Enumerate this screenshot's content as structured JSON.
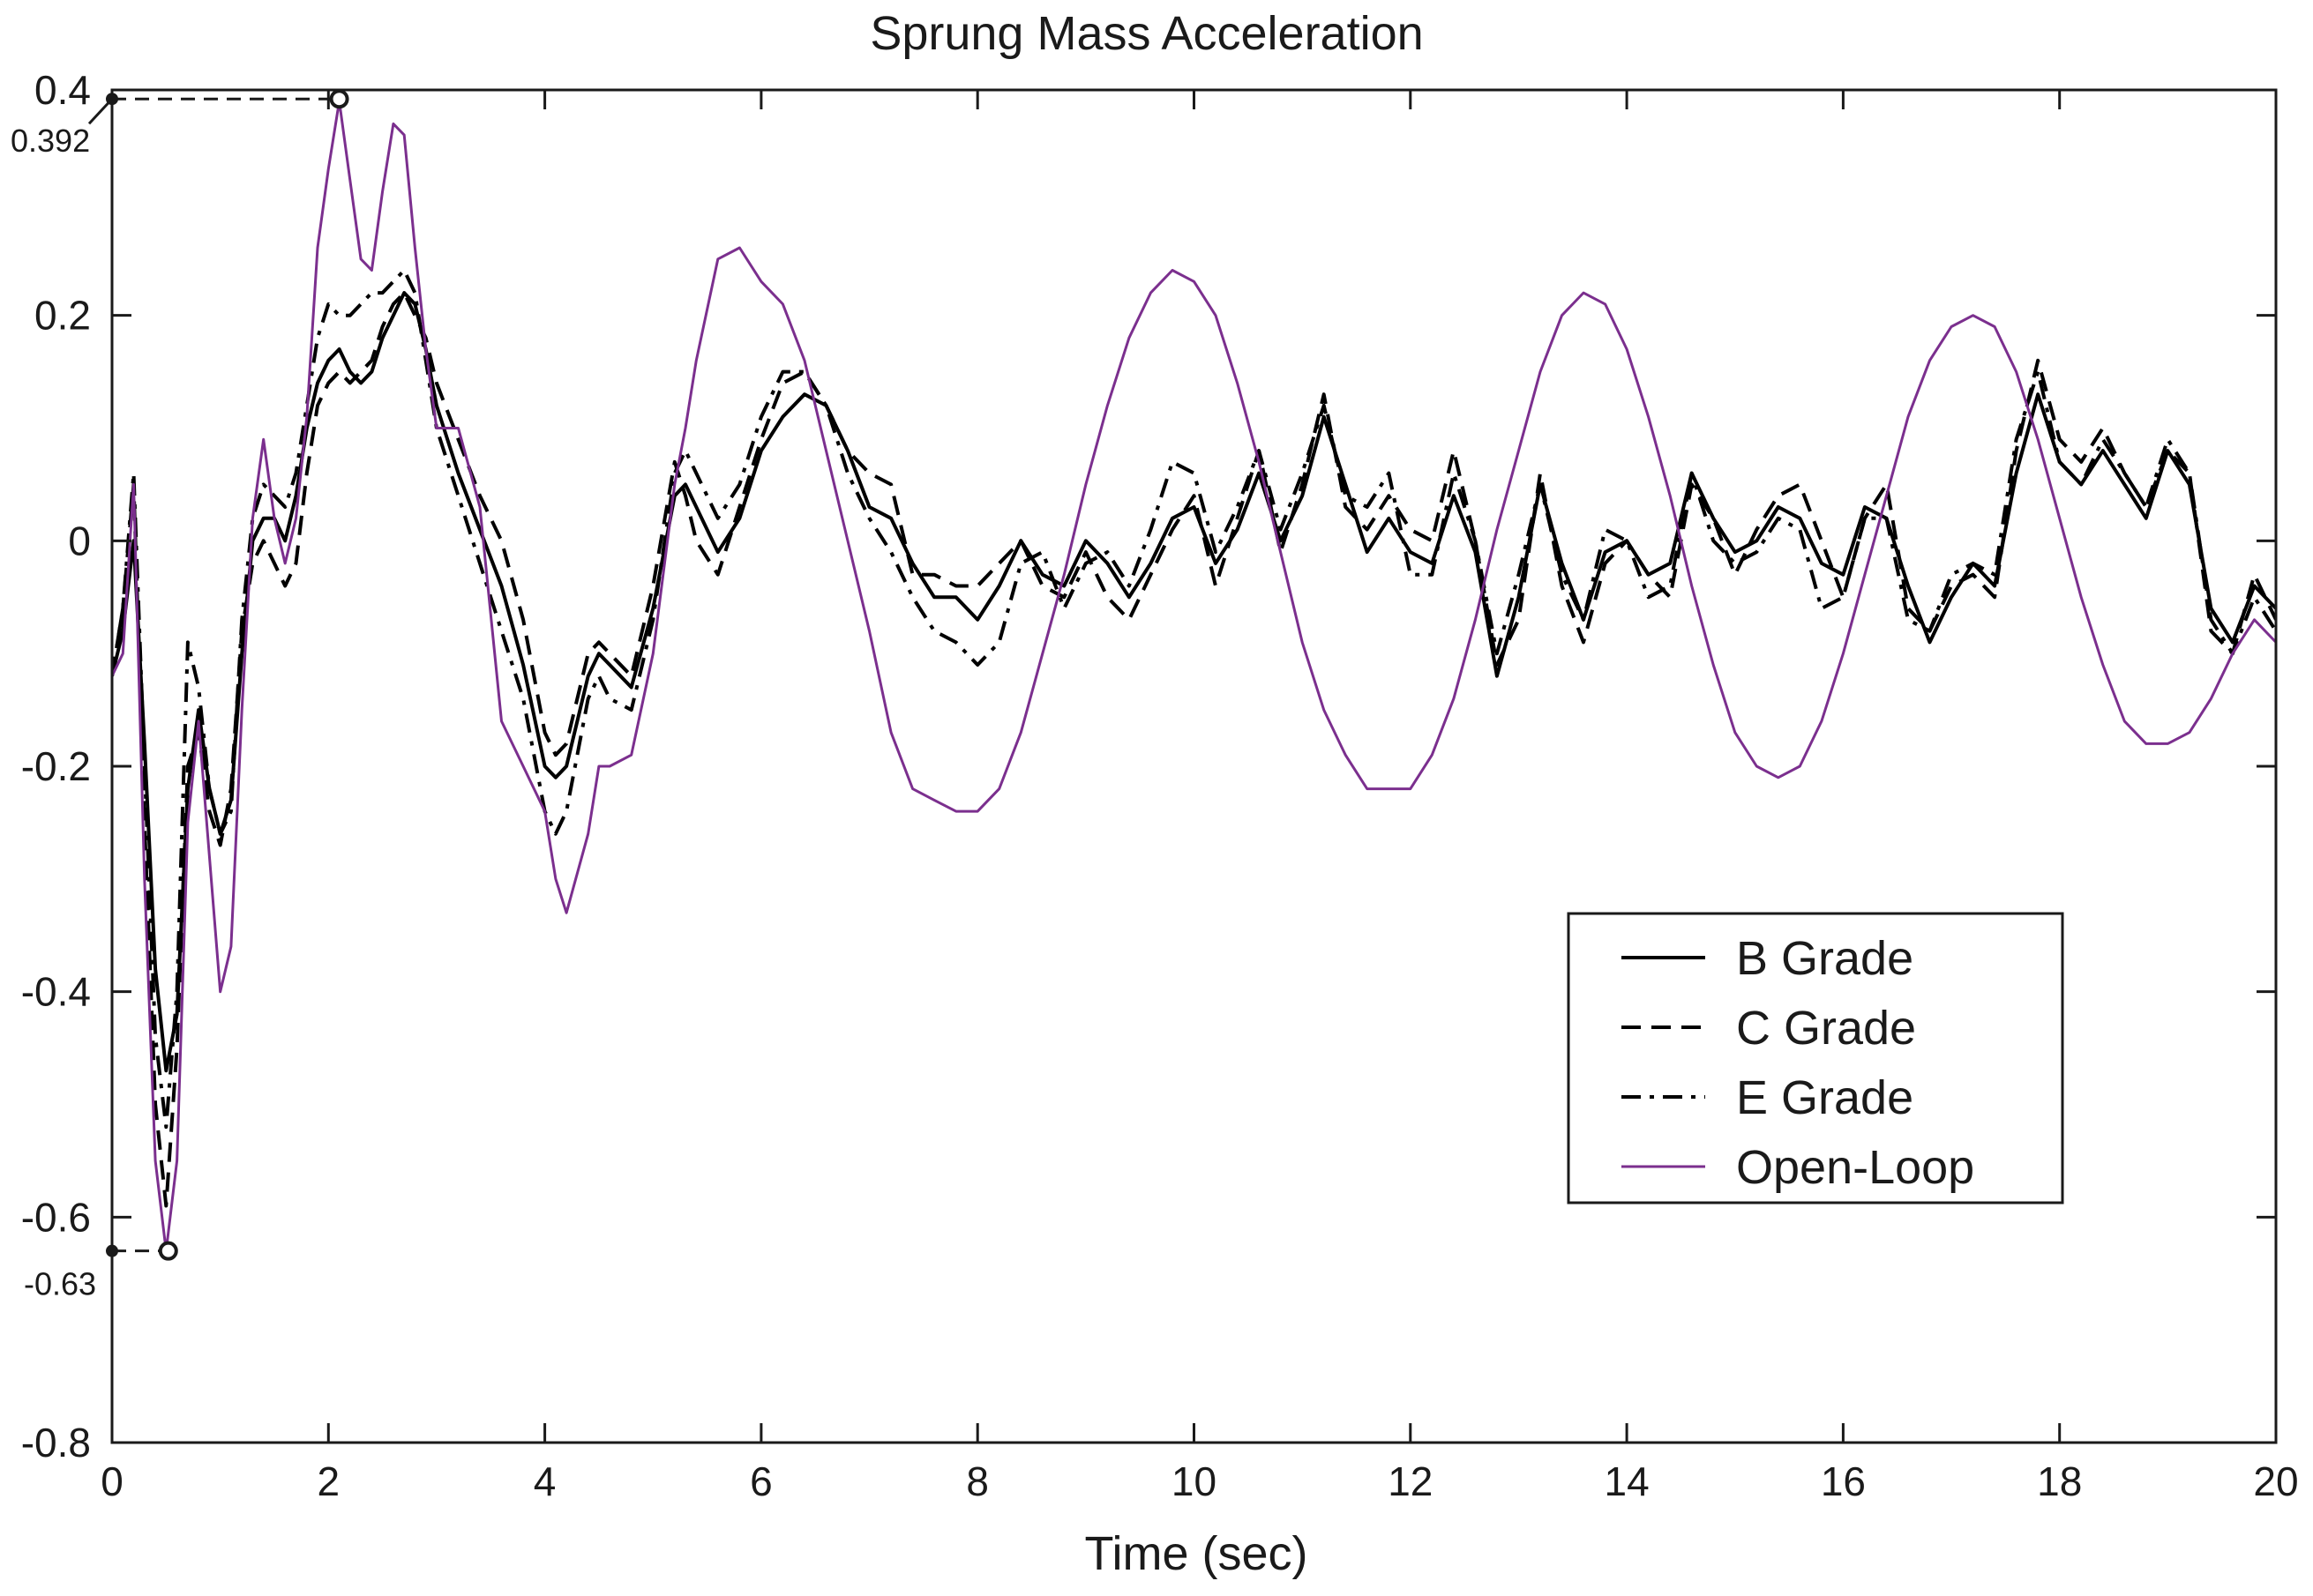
{
  "chart_data": {
    "type": "line",
    "title": "Sprung Mass Acceleration",
    "xlabel": "Time (sec)",
    "ylabel": "",
    "xlim": [
      0,
      20
    ],
    "ylim": [
      -0.8,
      0.4
    ],
    "xticks": [
      0,
      2,
      4,
      6,
      8,
      10,
      12,
      14,
      16,
      18,
      20
    ],
    "xtick_labels": [
      "0",
      "2",
      "4",
      "6",
      "8",
      "10",
      "12",
      "14",
      "16",
      "18",
      "20"
    ],
    "yticks": [
      -0.8,
      -0.6,
      -0.4,
      -0.2,
      0,
      0.2,
      0.4
    ],
    "ytick_labels": [
      "-0.8",
      "-0.6",
      "-0.4",
      "-0.2",
      "0",
      "0.2",
      "0.4"
    ],
    "grid": false,
    "legend_position": "center-right",
    "series": [
      {
        "name": "B Grade",
        "style": "solid",
        "color": "#000000",
        "x": [
          0,
          0.1,
          0.2,
          0.3,
          0.4,
          0.5,
          0.6,
          0.7,
          0.8,
          0.9,
          1.0,
          1.1,
          1.2,
          1.3,
          1.4,
          1.5,
          1.6,
          1.7,
          1.8,
          1.9,
          2.0,
          2.1,
          2.2,
          2.3,
          2.4,
          2.5,
          2.6,
          2.7,
          2.8,
          2.9,
          3.0,
          3.2,
          3.4,
          3.6,
          3.8,
          4.0,
          4.1,
          4.2,
          4.4,
          4.5,
          4.6,
          4.8,
          5.0,
          5.2,
          5.3,
          5.4,
          5.6,
          5.8,
          6.0,
          6.2,
          6.4,
          6.6,
          6.8,
          7.0,
          7.2,
          7.4,
          7.6,
          7.8,
          8.0,
          8.2,
          8.4,
          8.6,
          8.8,
          9.0,
          9.2,
          9.4,
          9.6,
          9.8,
          10.0,
          10.2,
          10.4,
          10.6,
          10.8,
          11.0,
          11.2,
          11.4,
          11.6,
          11.8,
          12.0,
          12.2,
          12.4,
          12.6,
          12.8,
          13.0,
          13.2,
          13.4,
          13.6,
          13.8,
          14.0,
          14.2,
          14.4,
          14.6,
          14.8,
          15.0,
          15.2,
          15.4,
          15.6,
          15.8,
          16.0,
          16.2,
          16.4,
          16.6,
          16.8,
          17.0,
          17.2,
          17.4,
          17.6,
          17.8,
          18.0,
          18.2,
          18.4,
          18.6,
          18.8,
          19.0,
          19.2,
          19.4,
          19.6,
          19.8,
          20.0
        ],
        "y": [
          -0.12,
          -0.08,
          0.0,
          -0.18,
          -0.38,
          -0.47,
          -0.42,
          -0.22,
          -0.15,
          -0.22,
          -0.26,
          -0.23,
          -0.1,
          0.0,
          0.02,
          0.02,
          0.0,
          0.04,
          0.1,
          0.14,
          0.16,
          0.17,
          0.15,
          0.14,
          0.15,
          0.18,
          0.2,
          0.22,
          0.21,
          0.17,
          0.12,
          0.06,
          0.01,
          -0.04,
          -0.11,
          -0.2,
          -0.21,
          -0.2,
          -0.12,
          -0.1,
          -0.11,
          -0.13,
          -0.06,
          0.04,
          0.05,
          0.03,
          -0.01,
          0.02,
          0.08,
          0.11,
          0.13,
          0.12,
          0.08,
          0.03,
          0.02,
          -0.02,
          -0.05,
          -0.05,
          -0.07,
          -0.04,
          0.0,
          -0.03,
          -0.04,
          0.0,
          -0.02,
          -0.05,
          -0.02,
          0.02,
          0.03,
          -0.02,
          0.01,
          0.06,
          0.0,
          0.04,
          0.11,
          0.05,
          -0.01,
          0.02,
          -0.01,
          -0.02,
          0.04,
          -0.01,
          -0.12,
          -0.05,
          0.05,
          -0.02,
          -0.07,
          -0.01,
          0.0,
          -0.03,
          -0.02,
          0.06,
          0.02,
          -0.01,
          0.0,
          0.03,
          0.02,
          -0.02,
          -0.03,
          0.03,
          0.02,
          -0.04,
          -0.09,
          -0.05,
          -0.02,
          -0.04,
          0.06,
          0.13,
          0.07,
          0.05,
          0.08,
          0.05,
          0.02,
          0.08,
          0.05,
          -0.06,
          -0.09,
          -0.04,
          -0.06
        ]
      },
      {
        "name": "C Grade",
        "style": "dashed",
        "color": "#000000",
        "x": [
          0,
          0.1,
          0.2,
          0.3,
          0.4,
          0.5,
          0.6,
          0.7,
          0.8,
          0.9,
          1.0,
          1.1,
          1.2,
          1.3,
          1.4,
          1.5,
          1.6,
          1.7,
          1.8,
          1.9,
          2.0,
          2.1,
          2.2,
          2.3,
          2.4,
          2.5,
          2.6,
          2.7,
          2.8,
          2.9,
          3.0,
          3.2,
          3.4,
          3.6,
          3.8,
          4.0,
          4.1,
          4.2,
          4.4,
          4.5,
          4.6,
          4.8,
          5.0,
          5.2,
          5.3,
          5.4,
          5.6,
          5.8,
          6.0,
          6.2,
          6.4,
          6.6,
          6.8,
          7.0,
          7.2,
          7.4,
          7.6,
          7.8,
          8.0,
          8.2,
          8.4,
          8.6,
          8.8,
          9.0,
          9.2,
          9.4,
          9.6,
          9.8,
          10.0,
          10.2,
          10.4,
          10.6,
          10.8,
          11.0,
          11.2,
          11.4,
          11.6,
          11.8,
          12.0,
          12.2,
          12.4,
          12.6,
          12.8,
          13.0,
          13.2,
          13.4,
          13.6,
          13.8,
          14.0,
          14.2,
          14.4,
          14.6,
          14.8,
          15.0,
          15.2,
          15.4,
          15.6,
          15.8,
          16.0,
          16.2,
          16.4,
          16.6,
          16.8,
          17.0,
          17.2,
          17.4,
          17.6,
          17.8,
          18.0,
          18.2,
          18.4,
          18.6,
          18.8,
          19.0,
          19.2,
          19.4,
          19.6,
          19.8,
          20.0
        ],
        "y": [
          -0.12,
          -0.06,
          0.05,
          -0.25,
          -0.5,
          -0.59,
          -0.45,
          -0.2,
          -0.17,
          -0.24,
          -0.27,
          -0.22,
          -0.08,
          -0.02,
          0.0,
          -0.02,
          -0.04,
          -0.02,
          0.06,
          0.12,
          0.14,
          0.15,
          0.14,
          0.15,
          0.16,
          0.19,
          0.21,
          0.22,
          0.2,
          0.18,
          0.14,
          0.09,
          0.04,
          0.0,
          -0.07,
          -0.17,
          -0.19,
          -0.18,
          -0.1,
          -0.09,
          -0.1,
          -0.12,
          -0.04,
          0.07,
          0.04,
          0.0,
          -0.03,
          0.03,
          0.09,
          0.14,
          0.15,
          0.12,
          0.08,
          0.06,
          0.05,
          -0.03,
          -0.03,
          -0.04,
          -0.04,
          -0.02,
          0.0,
          -0.04,
          -0.05,
          -0.01,
          -0.05,
          -0.07,
          -0.03,
          0.01,
          0.04,
          -0.04,
          0.02,
          0.08,
          -0.01,
          0.05,
          0.13,
          0.03,
          0.01,
          0.04,
          0.01,
          0.0,
          0.08,
          0.0,
          -0.11,
          -0.07,
          0.06,
          -0.04,
          -0.09,
          -0.02,
          0.0,
          -0.03,
          -0.05,
          0.05,
          0.02,
          -0.03,
          0.01,
          0.04,
          0.05,
          0.0,
          -0.05,
          0.02,
          0.05,
          -0.06,
          -0.08,
          -0.04,
          -0.03,
          -0.05,
          0.08,
          0.16,
          0.09,
          0.07,
          0.1,
          0.06,
          0.03,
          0.08,
          0.06,
          -0.08,
          -0.1,
          -0.03,
          -0.07
        ]
      },
      {
        "name": "E Grade",
        "style": "dashdot",
        "color": "#000000",
        "x": [
          0,
          0.1,
          0.2,
          0.3,
          0.4,
          0.5,
          0.6,
          0.7,
          0.8,
          0.9,
          1.0,
          1.1,
          1.2,
          1.3,
          1.4,
          1.5,
          1.6,
          1.7,
          1.8,
          1.9,
          2.0,
          2.1,
          2.2,
          2.3,
          2.4,
          2.5,
          2.6,
          2.7,
          2.8,
          2.9,
          3.0,
          3.2,
          3.4,
          3.6,
          3.8,
          4.0,
          4.1,
          4.2,
          4.4,
          4.5,
          4.6,
          4.8,
          5.0,
          5.2,
          5.3,
          5.4,
          5.6,
          5.8,
          6.0,
          6.2,
          6.4,
          6.6,
          6.8,
          7.0,
          7.2,
          7.4,
          7.6,
          7.8,
          8.0,
          8.2,
          8.4,
          8.6,
          8.8,
          9.0,
          9.2,
          9.4,
          9.6,
          9.8,
          10.0,
          10.2,
          10.4,
          10.6,
          10.8,
          11.0,
          11.2,
          11.4,
          11.6,
          11.8,
          12.0,
          12.2,
          12.4,
          12.6,
          12.8,
          13.0,
          13.2,
          13.4,
          13.6,
          13.8,
          14.0,
          14.2,
          14.4,
          14.6,
          14.8,
          15.0,
          15.2,
          15.4,
          15.6,
          15.8,
          16.0,
          16.2,
          16.4,
          16.6,
          16.8,
          17.0,
          17.2,
          17.4,
          17.6,
          17.8,
          18.0,
          18.2,
          18.4,
          18.6,
          18.8,
          19.0,
          19.2,
          19.4,
          19.6,
          19.8,
          20.0
        ],
        "y": [
          -0.12,
          -0.06,
          0.06,
          -0.2,
          -0.44,
          -0.52,
          -0.4,
          -0.09,
          -0.13,
          -0.22,
          -0.26,
          -0.24,
          -0.07,
          0.02,
          0.05,
          0.04,
          0.03,
          0.06,
          0.12,
          0.18,
          0.21,
          0.2,
          0.2,
          0.21,
          0.22,
          0.22,
          0.23,
          0.24,
          0.22,
          0.16,
          0.1,
          0.04,
          -0.02,
          -0.08,
          -0.14,
          -0.24,
          -0.26,
          -0.24,
          -0.14,
          -0.12,
          -0.14,
          -0.15,
          -0.07,
          0.06,
          0.08,
          0.06,
          0.02,
          0.05,
          0.11,
          0.15,
          0.15,
          0.12,
          0.06,
          0.02,
          -0.01,
          -0.05,
          -0.08,
          -0.09,
          -0.11,
          -0.09,
          -0.02,
          -0.01,
          -0.06,
          -0.02,
          -0.01,
          -0.04,
          0.01,
          0.07,
          0.06,
          -0.01,
          0.03,
          0.08,
          0.01,
          0.06,
          0.12,
          0.04,
          0.03,
          0.06,
          -0.03,
          -0.03,
          0.06,
          0.0,
          -0.1,
          -0.03,
          0.05,
          -0.03,
          -0.07,
          0.01,
          0.0,
          -0.05,
          -0.04,
          0.06,
          0.0,
          -0.02,
          -0.01,
          0.02,
          0.01,
          -0.06,
          -0.05,
          0.02,
          0.02,
          -0.07,
          -0.08,
          -0.03,
          -0.02,
          -0.03,
          0.09,
          0.15,
          0.07,
          0.05,
          0.09,
          0.06,
          0.03,
          0.09,
          0.06,
          -0.07,
          -0.1,
          -0.05,
          -0.08
        ]
      },
      {
        "name": "Open-Loop",
        "style": "solid",
        "color": "#7b2f8e",
        "x": [
          0,
          0.1,
          0.2,
          0.3,
          0.4,
          0.5,
          0.6,
          0.7,
          0.8,
          0.9,
          1.0,
          1.1,
          1.2,
          1.3,
          1.4,
          1.5,
          1.6,
          1.7,
          1.8,
          1.9,
          2.0,
          2.1,
          2.2,
          2.3,
          2.4,
          2.5,
          2.6,
          2.7,
          2.8,
          2.9,
          3.0,
          3.2,
          3.4,
          3.6,
          3.8,
          4.0,
          4.1,
          4.2,
          4.4,
          4.5,
          4.6,
          4.8,
          5.0,
          5.2,
          5.3,
          5.4,
          5.6,
          5.8,
          6.0,
          6.2,
          6.4,
          6.6,
          6.8,
          7.0,
          7.2,
          7.4,
          7.6,
          7.8,
          8.0,
          8.2,
          8.4,
          8.6,
          8.8,
          9.0,
          9.2,
          9.4,
          9.6,
          9.8,
          10.0,
          10.2,
          10.4,
          10.6,
          10.8,
          11.0,
          11.2,
          11.4,
          11.6,
          11.8,
          12.0,
          12.2,
          12.4,
          12.6,
          12.8,
          13.0,
          13.2,
          13.4,
          13.6,
          13.8,
          14.0,
          14.2,
          14.4,
          14.6,
          14.8,
          15.0,
          15.2,
          15.4,
          15.6,
          15.8,
          16.0,
          16.2,
          16.4,
          16.6,
          16.8,
          17.0,
          17.2,
          17.4,
          17.6,
          17.8,
          18.0,
          18.2,
          18.4,
          18.6,
          18.8,
          19.0,
          19.2,
          19.4,
          19.6,
          19.8,
          20.0
        ],
        "y": [
          -0.12,
          -0.1,
          0.05,
          -0.3,
          -0.55,
          -0.63,
          -0.55,
          -0.25,
          -0.16,
          -0.28,
          -0.4,
          -0.36,
          -0.15,
          0.02,
          0.09,
          0.02,
          -0.02,
          0.02,
          0.11,
          0.26,
          0.33,
          0.39,
          0.32,
          0.25,
          0.24,
          0.31,
          0.37,
          0.36,
          0.26,
          0.17,
          0.1,
          0.1,
          0.03,
          -0.16,
          -0.2,
          -0.24,
          -0.3,
          -0.33,
          -0.26,
          -0.2,
          -0.2,
          -0.19,
          -0.1,
          0.05,
          0.1,
          0.16,
          0.25,
          0.26,
          0.23,
          0.21,
          0.16,
          0.08,
          0.0,
          -0.08,
          -0.17,
          -0.22,
          -0.23,
          -0.24,
          -0.24,
          -0.22,
          -0.17,
          -0.1,
          -0.03,
          0.05,
          0.12,
          0.18,
          0.22,
          0.24,
          0.23,
          0.2,
          0.14,
          0.07,
          -0.01,
          -0.09,
          -0.15,
          -0.19,
          -0.22,
          -0.22,
          -0.22,
          -0.19,
          -0.14,
          -0.07,
          0.01,
          0.08,
          0.15,
          0.2,
          0.22,
          0.21,
          0.17,
          0.11,
          0.04,
          -0.04,
          -0.11,
          -0.17,
          -0.2,
          -0.21,
          -0.2,
          -0.16,
          -0.1,
          -0.03,
          0.04,
          0.11,
          0.16,
          0.19,
          0.2,
          0.19,
          0.15,
          0.09,
          0.02,
          -0.05,
          -0.11,
          -0.16,
          -0.18,
          -0.18,
          -0.17,
          -0.14,
          -0.1,
          -0.07,
          -0.09
        ]
      }
    ],
    "annotations": [
      {
        "label": "0.392",
        "x": 2.1,
        "y": 0.392
      },
      {
        "label": "-0.63",
        "x": 0.52,
        "y": -0.63
      }
    ]
  }
}
